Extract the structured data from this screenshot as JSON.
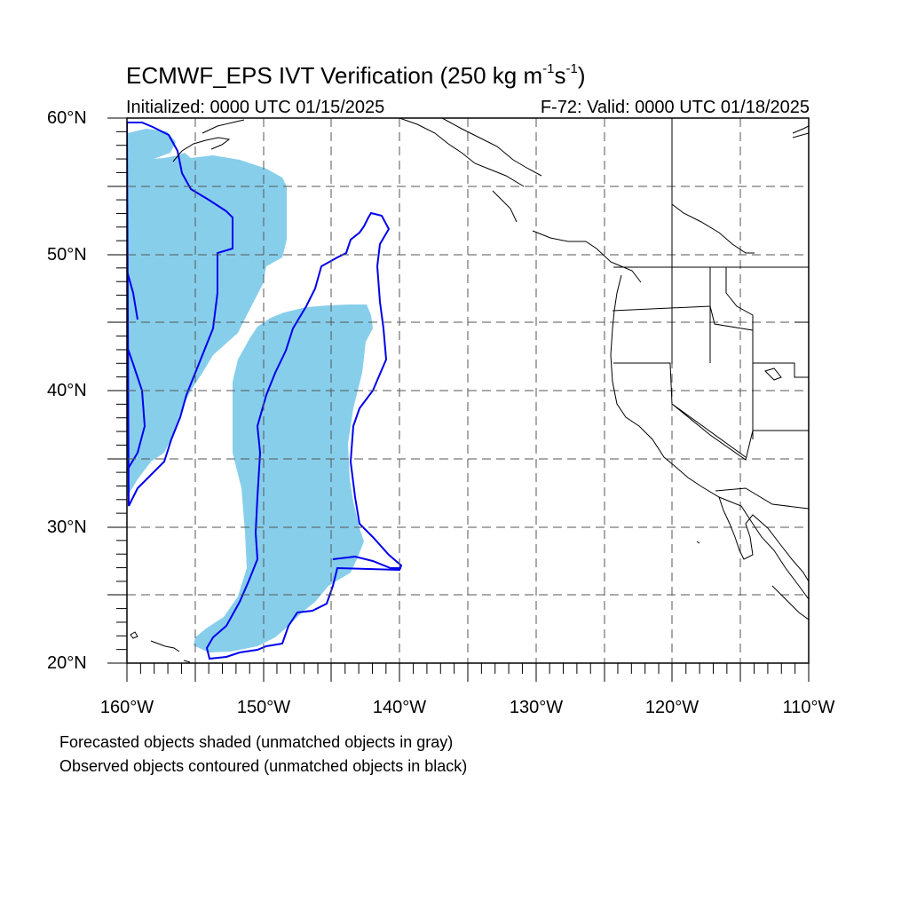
{
  "header": {
    "title_prefix": "ECMWF_EPS IVT Verification (250 kg m",
    "title_exp1": "-1",
    "title_mid": "s",
    "title_exp2": "-1",
    "title_suffix": ")",
    "initialized": "Initialized: 0000 UTC 01/15/2025",
    "valid": "F-72: Valid: 0000 UTC 01/18/2025"
  },
  "axes": {
    "lat_labels": [
      "60°N",
      "50°N",
      "40°N",
      "30°N",
      "20°N"
    ],
    "lon_labels": [
      "160°W",
      "150°W",
      "140°W",
      "130°W",
      "120°W",
      "110°W"
    ]
  },
  "legend": {
    "line1": "Forecasted objects shaded (unmatched objects in gray)",
    "line2": "Observed objects contoured (unmatched objects in black)"
  },
  "colors": {
    "forecast_fill": "#87CEEB",
    "observed_contour": "#0000EE",
    "coastline": "#000000",
    "grid": "#555555"
  }
}
